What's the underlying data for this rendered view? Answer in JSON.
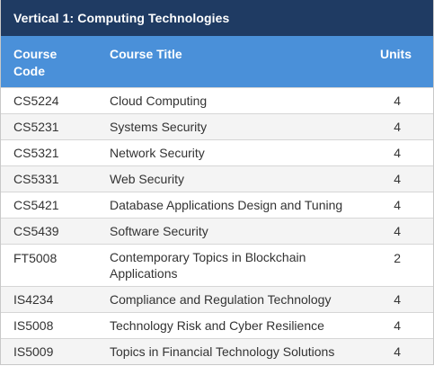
{
  "title": "Vertical 1: Computing Technologies",
  "headers": {
    "code": "Course Code",
    "title": "Course Title",
    "units": "Units"
  },
  "rows": [
    {
      "code": "CS5224",
      "title": "Cloud Computing",
      "units": "4"
    },
    {
      "code": "CS5231",
      "title": "Systems Security",
      "units": "4"
    },
    {
      "code": "CS5321",
      "title": "Network Security",
      "units": "4"
    },
    {
      "code": "CS5331",
      "title": "Web Security",
      "units": "4"
    },
    {
      "code": "CS5421",
      "title": "Database Applications Design and Tuning",
      "units": "4"
    },
    {
      "code": "CS5439",
      "title": "Software Security",
      "units": "4"
    },
    {
      "code": "FT5008",
      "title": "Contemporary Topics in Blockchain Applications",
      "units": "2"
    },
    {
      "code": "IS4234",
      "title": "Compliance and Regulation Technology",
      "units": "4"
    },
    {
      "code": "IS5008",
      "title": "Technology Risk and Cyber Resilience",
      "units": "4"
    },
    {
      "code": "IS5009",
      "title": "Topics in Financial Technology Solutions",
      "units": "4"
    }
  ],
  "colors": {
    "title_bar": "#1f3b63",
    "header_row": "#4a90d9",
    "stripe": "#f4f4f4"
  }
}
